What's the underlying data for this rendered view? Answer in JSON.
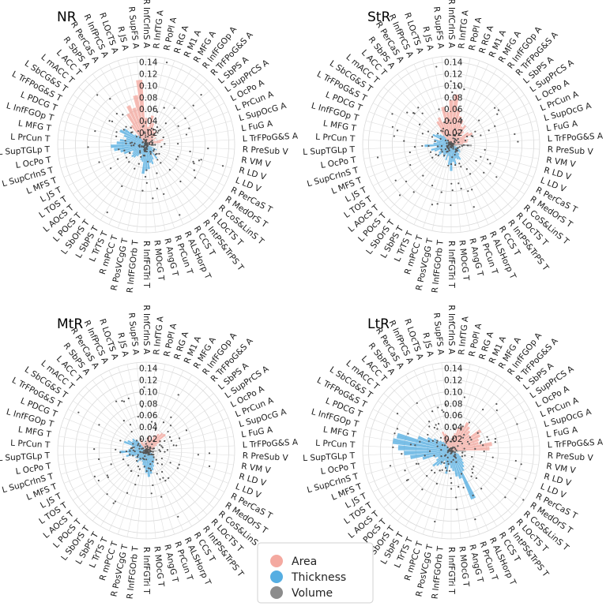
{
  "legend": {
    "title": "",
    "entries": [
      {
        "key": "area",
        "label": "Area",
        "color": "#f4a9a0"
      },
      {
        "key": "thickness",
        "label": "Thickness",
        "color": "#56aee2"
      },
      {
        "key": "volume",
        "label": "Volume",
        "color": "#8c8c8c"
      }
    ]
  },
  "chart_data": [
    {
      "type": "polar-bar",
      "title": "NR",
      "radial_ticks": [
        "0.02",
        "0.04",
        "0.06",
        "0.08",
        "0.10",
        "0.12",
        "0.14"
      ],
      "rlim": [
        0,
        0.15
      ],
      "categories": [
        "R InfCrInS A",
        "R InfTG A",
        "R PoPl A",
        "R RG A",
        "R M1 A",
        "R MFG A",
        "R InfFGOp A",
        "R TrFPoG&S A",
        "L SbPS A",
        "L SupPrCS A",
        "L OcPo A",
        "L PrCun A",
        "L SupOcG A",
        "L FuG A",
        "L TrFPoG&S A",
        "R PreSub V",
        "R VM V",
        "R LD V",
        "L LD V",
        "R PerCaS T",
        "R MedOrS T",
        "R CoS&LinS T",
        "R LOcTS T",
        "R IntPS&TrPS T",
        "R CCS T",
        "R ALSHorp T",
        "R PrCun T",
        "R AngG T",
        "R MOcG T",
        "R InfFGTri T",
        "R InfFGOrb T",
        "R PosVCgG T",
        "R mPCC T",
        "L TrTS T",
        "L SbPS T",
        "L SbOrS T",
        "L POcS T",
        "L AOcS T",
        "L TOS T",
        "L JS T",
        "L MFS T",
        "L SupCrInS T",
        "L OcPo T",
        "L SupTGLp T",
        "L PrCun T",
        "L MFG T",
        "L InfFGOp T",
        "L PDCG T",
        "L TrFPoG&S T",
        "L SbCG&S T",
        "L mACC T",
        "L ACC T",
        "R SbPS A",
        "R PerCaS A",
        "R InfPrCS A",
        "R LOcTS A",
        "R JS A",
        "R SupFS A"
      ],
      "values": [
        0.045,
        0.03,
        0.05,
        0.038,
        0.03,
        0.025,
        0.028,
        0.022,
        0.015,
        0.02,
        0.012,
        0.016,
        0.03,
        0.025,
        0.012,
        0.014,
        0.008,
        0.006,
        0.005,
        0.02,
        0.012,
        0.018,
        0.016,
        0.03,
        0.018,
        0.028,
        0.035,
        0.032,
        0.042,
        0.045,
        0.05,
        0.03,
        0.028,
        0.018,
        0.02,
        0.025,
        0.03,
        0.032,
        0.028,
        0.025,
        0.04,
        0.045,
        0.055,
        0.06,
        0.05,
        0.045,
        0.035,
        0.04,
        0.05,
        0.045,
        0.025,
        0.02,
        0.04,
        0.06,
        0.072,
        0.065,
        0.085,
        0.11
      ],
      "series_types": [
        "area",
        "area",
        "area",
        "area",
        "area",
        "area",
        "area",
        "area",
        "area",
        "area",
        "area",
        "area",
        "area",
        "area",
        "area",
        "volume",
        "volume",
        "volume",
        "volume",
        "thickness",
        "thickness",
        "thickness",
        "thickness",
        "thickness",
        "thickness",
        "thickness",
        "thickness",
        "thickness",
        "thickness",
        "thickness",
        "thickness",
        "thickness",
        "thickness",
        "thickness",
        "thickness",
        "thickness",
        "thickness",
        "thickness",
        "thickness",
        "thickness",
        "thickness",
        "thickness",
        "thickness",
        "thickness",
        "thickness",
        "thickness",
        "thickness",
        "thickness",
        "thickness",
        "thickness",
        "thickness",
        "thickness",
        "area",
        "area",
        "area",
        "area",
        "area",
        "area"
      ]
    },
    {
      "type": "polar-bar",
      "title": "StR",
      "radial_ticks": [
        "0.02",
        "0.04",
        "0.06",
        "0.08",
        "0.10",
        "0.12",
        "0.14"
      ],
      "rlim": [
        0,
        0.15
      ],
      "categories": [
        "R InfCrInS A",
        "R InfTG A",
        "R PoPl A",
        "R RG A",
        "R M1 A",
        "R MFG A",
        "R InfFGOp A",
        "R TrFPoG&S A",
        "L SbPS A",
        "L SupPrCS A",
        "L OcPo A",
        "L PrCun A",
        "L SupOcG A",
        "L FuG A",
        "L TrFPoG&S A",
        "R PreSub V",
        "R VM V",
        "R LD V",
        "L LD V",
        "R PerCaS T",
        "R MedOrS T",
        "R CoS&LinS T",
        "R LOcTS T",
        "R IntPS&TrPS T",
        "R CCS T",
        "R ALSHorp T",
        "R PrCun T",
        "R AngG T",
        "R MOcG T",
        "R InfFGTri T",
        "R InfFGOrb T",
        "R PosVCgG T",
        "R mPCC T",
        "L TrTS T",
        "L SbPS T",
        "L SbOrS T",
        "L POcS T",
        "L AOcS T",
        "L TOS T",
        "L JS T",
        "L MFS T",
        "L SupCrInS T",
        "L OcPo T",
        "L SupTGLp T",
        "L PrCun T",
        "L MFG T",
        "L InfFGOp T",
        "L PDCG T",
        "L TrFPoG&S T",
        "L SbCG&S T",
        "L mACC T",
        "L ACC T",
        "R SbPS A",
        "R PerCaS A",
        "R InfPrCS A",
        "R LOcTS A",
        "R JS A",
        "R SupFS A"
      ],
      "values": [
        0.075,
        0.085,
        0.06,
        0.05,
        0.045,
        0.035,
        0.04,
        0.03,
        0.02,
        0.035,
        0.04,
        0.025,
        0.03,
        0.028,
        0.02,
        0.035,
        0.01,
        0.008,
        0.006,
        0.012,
        0.018,
        0.02,
        0.015,
        0.022,
        0.03,
        0.028,
        0.025,
        0.035,
        0.03,
        0.045,
        0.035,
        0.02,
        0.028,
        0.018,
        0.025,
        0.022,
        0.02,
        0.028,
        0.025,
        0.02,
        0.03,
        0.035,
        0.025,
        0.045,
        0.03,
        0.025,
        0.03,
        0.02,
        0.035,
        0.03,
        0.025,
        0.02,
        0.03,
        0.045,
        0.05,
        0.04,
        0.065,
        0.055
      ],
      "series_types": [
        "area",
        "area",
        "area",
        "area",
        "area",
        "area",
        "area",
        "area",
        "area",
        "area",
        "area",
        "area",
        "area",
        "area",
        "area",
        "volume",
        "volume",
        "volume",
        "volume",
        "thickness",
        "thickness",
        "thickness",
        "thickness",
        "thickness",
        "thickness",
        "thickness",
        "thickness",
        "thickness",
        "thickness",
        "thickness",
        "thickness",
        "thickness",
        "thickness",
        "thickness",
        "thickness",
        "thickness",
        "thickness",
        "thickness",
        "thickness",
        "thickness",
        "thickness",
        "thickness",
        "thickness",
        "thickness",
        "thickness",
        "thickness",
        "thickness",
        "thickness",
        "thickness",
        "thickness",
        "thickness",
        "thickness",
        "area",
        "area",
        "area",
        "area",
        "area",
        "area"
      ]
    },
    {
      "type": "polar-bar",
      "title": "MtR",
      "radial_ticks": [
        "0.02",
        "0.04",
        "0.06",
        "0.08",
        "0.10",
        "0.12",
        "0.14"
      ],
      "rlim": [
        0,
        0.15
      ],
      "categories": [
        "R InfCrInS A",
        "R InfTG A",
        "R PoPl A",
        "R RG A",
        "R M1 A",
        "R MFG A",
        "R InfFGOp A",
        "R TrFPoG&S A",
        "L SbPS A",
        "L SupPrCS A",
        "L OcPo A",
        "L PrCun A",
        "L SupOcG A",
        "L FuG A",
        "L TrFPoG&S A",
        "R PreSub V",
        "R VM V",
        "R LD V",
        "L LD V",
        "R PerCaS T",
        "R MedOrS T",
        "R CoS&LinS T",
        "R LOcTS T",
        "R IntPS&TrPS T",
        "R CCS T",
        "R ALSHorp T",
        "R PrCun T",
        "R AngG T",
        "R MOcG T",
        "R InfFGTri T",
        "R InfFGOrb T",
        "R PosVCgG T",
        "R mPCC T",
        "L TrTS T",
        "L SbPS T",
        "L SbOrS T",
        "L POcS T",
        "L AOcS T",
        "L TOS T",
        "L JS T",
        "L MFS T",
        "L SupCrInS T",
        "L OcPo T",
        "L SupTGLp T",
        "L PrCun T",
        "L MFG T",
        "L InfFGOp T",
        "L PDCG T",
        "L TrFPoG&S T",
        "L SbCG&S T",
        "L mACC T",
        "L ACC T",
        "R SbPS A",
        "R PerCaS A",
        "R InfPrCS A",
        "R LOcTS A",
        "R JS A",
        "R SupFS A"
      ],
      "values": [
        0.015,
        0.02,
        0.025,
        0.018,
        0.02,
        0.03,
        0.035,
        0.04,
        0.042,
        0.03,
        0.02,
        0.015,
        0.01,
        0.012,
        0.008,
        0.018,
        0.008,
        0.006,
        0.005,
        0.012,
        0.015,
        0.018,
        0.02,
        0.022,
        0.025,
        0.03,
        0.035,
        0.04,
        0.045,
        0.038,
        0.03,
        0.025,
        0.02,
        0.018,
        0.02,
        0.025,
        0.018,
        0.02,
        0.022,
        0.018,
        0.025,
        0.035,
        0.03,
        0.045,
        0.03,
        0.02,
        0.025,
        0.04,
        0.035,
        0.028,
        0.03,
        0.025,
        0.015,
        0.018,
        0.02,
        0.012,
        0.015,
        0.01
      ],
      "series_types": [
        "area",
        "area",
        "area",
        "area",
        "area",
        "area",
        "area",
        "area",
        "area",
        "area",
        "area",
        "area",
        "area",
        "area",
        "area",
        "volume",
        "volume",
        "volume",
        "volume",
        "thickness",
        "thickness",
        "thickness",
        "thickness",
        "thickness",
        "thickness",
        "thickness",
        "thickness",
        "thickness",
        "thickness",
        "thickness",
        "thickness",
        "thickness",
        "thickness",
        "thickness",
        "thickness",
        "thickness",
        "thickness",
        "thickness",
        "thickness",
        "thickness",
        "thickness",
        "thickness",
        "thickness",
        "thickness",
        "thickness",
        "thickness",
        "thickness",
        "thickness",
        "thickness",
        "thickness",
        "thickness",
        "thickness",
        "area",
        "area",
        "area",
        "area",
        "area",
        "area"
      ]
    },
    {
      "type": "polar-bar",
      "title": "LtR",
      "radial_ticks": [
        "0.02",
        "0.04",
        "0.06",
        "0.08",
        "0.10",
        "0.12",
        "0.14"
      ],
      "rlim": [
        0,
        0.15
      ],
      "categories": [
        "R InfCrInS A",
        "R InfTG A",
        "R PoPl A",
        "R RG A",
        "R M1 A",
        "R MFG A",
        "R InfFGOp A",
        "R TrFPoG&S A",
        "L SbPS A",
        "L SupPrCS A",
        "L OcPo A",
        "L PrCun A",
        "L SupOcG A",
        "L FuG A",
        "L TrFPoG&S A",
        "R PreSub V",
        "R VM V",
        "R LD V",
        "L LD V",
        "R PerCaS T",
        "R MedOrS T",
        "R CoS&LinS T",
        "R LOcTS T",
        "R IntPS&TrPS T",
        "R CCS T",
        "R ALSHorp T",
        "R PrCun T",
        "R AngG T",
        "R MOcG T",
        "R InfFGTri T",
        "R InfFGOrb T",
        "R PosVCgG T",
        "R mPCC T",
        "L TrTS T",
        "L SbPS T",
        "L SbOrS T",
        "L POcS T",
        "L AOcS T",
        "L TOS T",
        "L JS T",
        "L MFS T",
        "L SupCrInS T",
        "L OcPo T",
        "L SupTGLp T",
        "L PrCun T",
        "L MFG T",
        "L InfFGOp T",
        "L PDCG T",
        "L TrFPoG&S T",
        "L SbCG&S T",
        "L mACC T",
        "L ACC T",
        "R SbPS A",
        "R PerCaS A",
        "R InfPrCS A",
        "R LOcTS A",
        "R JS A",
        "R SupFS A"
      ],
      "values": [
        0.02,
        0.025,
        0.03,
        0.04,
        0.045,
        0.055,
        0.05,
        0.045,
        0.04,
        0.06,
        0.055,
        0.05,
        0.048,
        0.07,
        0.065,
        0.025,
        0.012,
        0.008,
        0.006,
        0.015,
        0.02,
        0.025,
        0.03,
        0.035,
        0.04,
        0.09,
        0.05,
        0.045,
        0.035,
        0.03,
        0.025,
        0.04,
        0.03,
        0.025,
        0.02,
        0.03,
        0.035,
        0.04,
        0.03,
        0.025,
        0.03,
        0.05,
        0.07,
        0.08,
        0.09,
        0.1,
        0.095,
        0.06,
        0.045,
        0.035,
        0.025,
        0.02,
        0.02,
        0.025,
        0.035,
        0.03,
        0.025,
        0.015
      ],
      "series_types": [
        "area",
        "area",
        "area",
        "area",
        "area",
        "area",
        "area",
        "area",
        "area",
        "area",
        "area",
        "area",
        "area",
        "area",
        "area",
        "volume",
        "volume",
        "volume",
        "volume",
        "thickness",
        "thickness",
        "thickness",
        "thickness",
        "thickness",
        "thickness",
        "thickness",
        "thickness",
        "thickness",
        "thickness",
        "thickness",
        "thickness",
        "thickness",
        "thickness",
        "thickness",
        "thickness",
        "thickness",
        "thickness",
        "thickness",
        "thickness",
        "thickness",
        "thickness",
        "thickness",
        "thickness",
        "thickness",
        "thickness",
        "thickness",
        "thickness",
        "thickness",
        "thickness",
        "thickness",
        "thickness",
        "thickness",
        "area",
        "area",
        "area",
        "area",
        "area",
        "area"
      ]
    }
  ]
}
